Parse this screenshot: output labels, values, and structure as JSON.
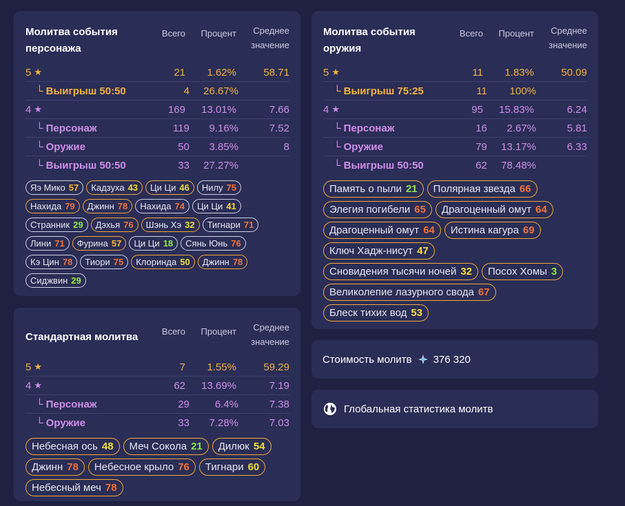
{
  "headers": {
    "total": "Всего",
    "percent": "Процент",
    "avg_line1": "Среднее",
    "avg_line2": "значение"
  },
  "character": {
    "title": "Молитва события персонажа",
    "rows": [
      {
        "label": "5",
        "star": "★",
        "total": "21",
        "pct": "1.62%",
        "avg": "58.71",
        "tier": "gold"
      },
      {
        "label": "Выигрыш 50:50",
        "total": "4",
        "pct": "26.67%",
        "avg": "",
        "tier": "gold",
        "sub": true
      },
      {
        "label": "4",
        "star": "★",
        "total": "169",
        "pct": "13.01%",
        "avg": "7.66",
        "tier": "purp"
      },
      {
        "label": "Персонаж",
        "total": "119",
        "pct": "9.16%",
        "avg": "7.52",
        "tier": "purp",
        "sub": true
      },
      {
        "label": "Оружие",
        "total": "50",
        "pct": "3.85%",
        "avg": "8",
        "tier": "purp",
        "sub": true
      },
      {
        "label": "Выигрыш 50:50",
        "total": "33",
        "pct": "27.27%",
        "avg": "",
        "tier": "purp",
        "sub": true
      }
    ],
    "chips": [
      {
        "name": "Яэ Мико",
        "count": "57",
        "color": "amber",
        "gold": false
      },
      {
        "name": "Кадзуха",
        "count": "43",
        "color": "yellow",
        "gold": true
      },
      {
        "name": "Ци Ци",
        "count": "46",
        "color": "yellow",
        "gold": true
      },
      {
        "name": "Нилу",
        "count": "75",
        "color": "orange",
        "gold": false
      },
      {
        "name": "Нахида",
        "count": "79",
        "color": "orange",
        "gold": true
      },
      {
        "name": "Джинн",
        "count": "78",
        "color": "orange",
        "gold": true
      },
      {
        "name": "Нахида",
        "count": "74",
        "color": "orange",
        "gold": false
      },
      {
        "name": "Ци Ци",
        "count": "41",
        "color": "yellow",
        "gold": false
      },
      {
        "name": "Странник",
        "count": "29",
        "color": "green",
        "gold": false
      },
      {
        "name": "Дэхья",
        "count": "76",
        "color": "orange",
        "gold": true
      },
      {
        "name": "Шэнь Хэ",
        "count": "32",
        "color": "yellow",
        "gold": true
      },
      {
        "name": "Тигнари",
        "count": "71",
        "color": "orange",
        "gold": false
      },
      {
        "name": "Лини",
        "count": "71",
        "color": "orange",
        "gold": false
      },
      {
        "name": "Фурина",
        "count": "57",
        "color": "amber",
        "gold": true
      },
      {
        "name": "Ци Ци",
        "count": "18",
        "color": "green",
        "gold": false
      },
      {
        "name": "Сянь Юнь",
        "count": "76",
        "color": "orange",
        "gold": false
      },
      {
        "name": "Кэ Цин",
        "count": "78",
        "color": "orange",
        "gold": false
      },
      {
        "name": "Тиори",
        "count": "75",
        "color": "orange",
        "gold": false
      },
      {
        "name": "Клоринда",
        "count": "50",
        "color": "yellow",
        "gold": true
      },
      {
        "name": "Джинн",
        "count": "78",
        "color": "orange",
        "gold": true
      },
      {
        "name": "Сиджвин",
        "count": "29",
        "color": "green",
        "gold": false
      }
    ]
  },
  "weapon": {
    "title": "Молитва события оружия",
    "rows": [
      {
        "label": "5",
        "star": "★",
        "total": "11",
        "pct": "1.83%",
        "avg": "50.09",
        "tier": "gold"
      },
      {
        "label": "Выигрыш 75:25",
        "total": "11",
        "pct": "100%",
        "avg": "",
        "tier": "gold",
        "sub": true
      },
      {
        "label": "4",
        "star": "★",
        "total": "95",
        "pct": "15.83%",
        "avg": "6.24",
        "tier": "purp"
      },
      {
        "label": "Персонаж",
        "total": "16",
        "pct": "2.67%",
        "avg": "5.81",
        "tier": "purp",
        "sub": true
      },
      {
        "label": "Оружие",
        "total": "79",
        "pct": "13.17%",
        "avg": "6.33",
        "tier": "purp",
        "sub": true
      },
      {
        "label": "Выигрыш 50:50",
        "total": "62",
        "pct": "78.48%",
        "avg": "",
        "tier": "purp",
        "sub": true
      }
    ],
    "chips": [
      {
        "name": "Память о пыли",
        "count": "21",
        "color": "green",
        "gold": true
      },
      {
        "name": "Полярная звезда",
        "count": "66",
        "color": "orange",
        "gold": true
      },
      {
        "name": "Элегия погибели",
        "count": "65",
        "color": "orange",
        "gold": true
      },
      {
        "name": "Драгоценный омут",
        "count": "64",
        "color": "orange",
        "gold": true
      },
      {
        "name": "Драгоценный омут",
        "count": "64",
        "color": "orange",
        "gold": true
      },
      {
        "name": "Истина кагура",
        "count": "69",
        "color": "orange",
        "gold": true
      },
      {
        "name": "Ключ Хадж-нисут",
        "count": "47",
        "color": "yellow",
        "gold": true
      },
      {
        "name": "Сновидения тысячи ночей",
        "count": "32",
        "color": "yellow",
        "gold": true
      },
      {
        "name": "Посох Хомы",
        "count": "3",
        "color": "green",
        "gold": true
      },
      {
        "name": "Великолепие лазурного свода",
        "count": "67",
        "color": "orange",
        "gold": true
      },
      {
        "name": "Блеск тихих вод",
        "count": "53",
        "color": "yellow",
        "gold": true
      }
    ]
  },
  "standard": {
    "title": "Стандартная молитва",
    "rows": [
      {
        "label": "5",
        "star": "★",
        "total": "7",
        "pct": "1.55%",
        "avg": "59.29",
        "tier": "gold"
      },
      {
        "label": "4",
        "star": "★",
        "total": "62",
        "pct": "13.69%",
        "avg": "7.19",
        "tier": "purp"
      },
      {
        "label": "Персонаж",
        "total": "29",
        "pct": "6.4%",
        "avg": "7.38",
        "tier": "purp",
        "sub": true
      },
      {
        "label": "Оружие",
        "total": "33",
        "pct": "7.28%",
        "avg": "7.03",
        "tier": "purp",
        "sub": true
      }
    ],
    "chips": [
      {
        "name": "Небесная ось",
        "count": "48",
        "color": "yellow",
        "gold": true
      },
      {
        "name": "Меч Сокола",
        "count": "21",
        "color": "green",
        "gold": true
      },
      {
        "name": "Дилюк",
        "count": "54",
        "color": "yellow",
        "gold": true
      },
      {
        "name": "Джинн",
        "count": "78",
        "color": "orange",
        "gold": true
      },
      {
        "name": "Небесное крыло",
        "count": "76",
        "color": "orange",
        "gold": true
      },
      {
        "name": "Тигнари",
        "count": "60",
        "color": "yellow",
        "gold": true
      },
      {
        "name": "Небесный меч",
        "count": "78",
        "color": "orange",
        "gold": true
      }
    ]
  },
  "cost": {
    "label": "Стоимость молитв",
    "value": "376 320",
    "icon": "primogem-icon"
  },
  "global": {
    "label": "Глобальная статистика молитв",
    "icon": "globe-icon"
  },
  "colors": {
    "gold": "#f4b23d",
    "purple": "#cf8ee8",
    "card": "#2a2d55",
    "background": "#1e2141"
  }
}
